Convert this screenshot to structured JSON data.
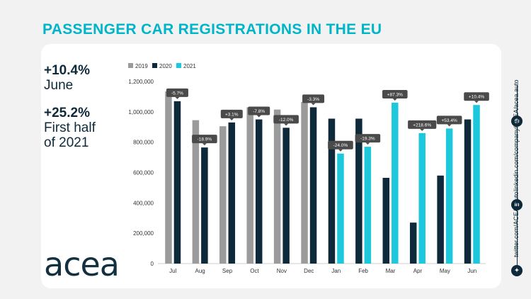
{
  "header": {
    "title": "PASSENGER CAR REGISTRATIONS IN THE EU"
  },
  "stats": [
    {
      "value": "+10.4%",
      "lines": [
        "June"
      ]
    },
    {
      "value": "+25.2%",
      "lines": [
        "First half",
        "of 2021"
      ]
    }
  ],
  "logo": {
    "text": "acea"
  },
  "social": {
    "website": "acea.auto",
    "linkedin": "linkedin.com/company/ACEA/",
    "twitter": "twitter.com/ACEA_auto"
  },
  "colors": {
    "accent": "#00b5c8",
    "dark": "#0e2a3a",
    "grey": "#9b9b9b",
    "y2021": "#1ec8dc"
  },
  "chart_data": {
    "type": "bar",
    "categories": [
      "Jul",
      "Aug",
      "Sep",
      "Oct",
      "Nov",
      "Dec",
      "Jan",
      "Feb",
      "Mar",
      "Apr",
      "May",
      "Jun"
    ],
    "series": [
      {
        "name": "2019",
        "color": "#9b9b9b",
        "values": [
          1135000,
          945000,
          905000,
          1030000,
          1015000,
          1065000,
          null,
          null,
          null,
          null,
          null,
          null
        ]
      },
      {
        "name": "2020",
        "color": "#0e2a3a",
        "values": [
          1070000,
          765000,
          930000,
          950000,
          895000,
          1030000,
          955000,
          955000,
          565000,
          270000,
          580000,
          950000
        ]
      },
      {
        "name": "2021",
        "color": "#1ec8dc",
        "values": [
          null,
          null,
          null,
          null,
          null,
          null,
          725000,
          770000,
          1060000,
          860000,
          890000,
          1045000
        ]
      }
    ],
    "annotations": [
      {
        "category": "Jul",
        "series": "2020",
        "text": "-5.7%"
      },
      {
        "category": "Aug",
        "series": "2020",
        "text": "-18.9%"
      },
      {
        "category": "Sep",
        "series": "2020",
        "text": "+3.1%"
      },
      {
        "category": "Oct",
        "series": "2020",
        "text": "-7.8%"
      },
      {
        "category": "Nov",
        "series": "2020",
        "text": "-12.0%"
      },
      {
        "category": "Dec",
        "series": "2020",
        "text": "-3.3%"
      },
      {
        "category": "Jan",
        "series": "2021",
        "text": "-24.0%"
      },
      {
        "category": "Feb",
        "series": "2021",
        "text": "-19.3%"
      },
      {
        "category": "Mar",
        "series": "2021",
        "text": "+87.3%"
      },
      {
        "category": "Apr",
        "series": "2021",
        "text": "+218.6%"
      },
      {
        "category": "May",
        "series": "2021",
        "text": "+53.4%"
      },
      {
        "category": "Jun",
        "series": "2021",
        "text": "+10.4%"
      }
    ],
    "ylim": [
      0,
      1200000
    ],
    "yticks": [
      0,
      200000,
      400000,
      600000,
      800000,
      1000000,
      1200000
    ],
    "ytick_labels": [
      "0",
      "200,000",
      "400,000",
      "600,000",
      "800,000",
      "1,000,000",
      "1,200,000"
    ],
    "grid": false,
    "legend": "top-left"
  }
}
